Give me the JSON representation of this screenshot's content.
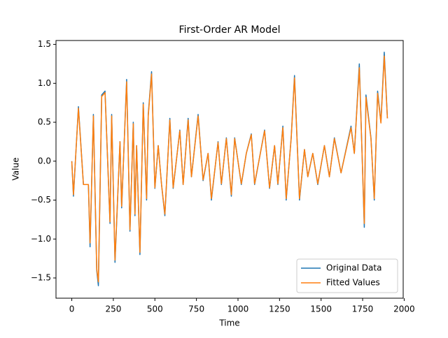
{
  "chart_data": {
    "type": "line",
    "title": "First-Order AR Model",
    "xlabel": "Time",
    "ylabel": "Value",
    "x": [
      0,
      10,
      40,
      70,
      100,
      110,
      130,
      150,
      160,
      180,
      200,
      230,
      240,
      260,
      290,
      300,
      330,
      350,
      370,
      380,
      390,
      410,
      430,
      450,
      460,
      480,
      500,
      520,
      540,
      560,
      590,
      610,
      650,
      670,
      700,
      720,
      760,
      790,
      820,
      840,
      880,
      900,
      930,
      960,
      980,
      1020,
      1050,
      1080,
      1100,
      1160,
      1190,
      1220,
      1240,
      1270,
      1290,
      1320,
      1340,
      1370,
      1400,
      1420,
      1450,
      1480,
      1520,
      1550,
      1580,
      1620,
      1680,
      1700,
      1730,
      1760,
      1770,
      1800,
      1820,
      1840,
      1860,
      1880,
      1899
    ],
    "series": [
      {
        "name": "Original Data",
        "color": "#1f77b4",
        "values": [
          0,
          -0.45,
          0.7,
          -0.3,
          -0.3,
          -1.1,
          0.6,
          -1.4,
          -1.6,
          0.85,
          0.9,
          -0.8,
          0.6,
          -1.3,
          0.25,
          -0.6,
          1.05,
          -0.9,
          0.5,
          -0.7,
          0.2,
          -1.2,
          0.75,
          -0.5,
          0.6,
          1.15,
          -0.35,
          0.2,
          -0.3,
          -0.7,
          0.55,
          -0.35,
          0.4,
          -0.3,
          0.55,
          -0.2,
          0.6,
          -0.25,
          0.1,
          -0.5,
          0.25,
          -0.3,
          0.3,
          -0.45,
          0.3,
          -0.3,
          0.1,
          0.35,
          -0.3,
          0.4,
          -0.35,
          0.2,
          -0.3,
          0.45,
          -0.5,
          0.3,
          1.1,
          -0.5,
          0.15,
          -0.2,
          0.1,
          -0.3,
          0.2,
          -0.2,
          0.3,
          -0.15,
          0.45,
          0.1,
          1.25,
          -0.85,
          0.85,
          0.3,
          -0.5,
          0.9,
          0.5,
          1.4,
          0.55
        ]
      },
      {
        "name": "Fitted Values",
        "color": "#ff7f0e",
        "values": [
          0,
          -0.43,
          0.68,
          -0.3,
          -0.3,
          -1.05,
          0.58,
          -1.38,
          -1.55,
          0.83,
          0.88,
          -0.78,
          0.58,
          -1.27,
          0.25,
          -0.58,
          1.02,
          -0.88,
          0.48,
          -0.68,
          0.2,
          -1.17,
          0.73,
          -0.48,
          0.58,
          1.12,
          -0.34,
          0.2,
          -0.3,
          -0.68,
          0.53,
          -0.34,
          0.39,
          -0.3,
          0.53,
          -0.2,
          0.58,
          -0.24,
          0.1,
          -0.48,
          0.24,
          -0.29,
          0.29,
          -0.43,
          0.29,
          -0.29,
          0.1,
          0.34,
          -0.29,
          0.39,
          -0.34,
          0.2,
          -0.29,
          0.43,
          -0.48,
          0.29,
          1.07,
          -0.48,
          0.15,
          -0.2,
          0.1,
          -0.29,
          0.2,
          -0.2,
          0.29,
          -0.15,
          0.43,
          0.1,
          1.2,
          -0.8,
          0.82,
          0.29,
          -0.48,
          0.87,
          0.49,
          1.35,
          0.55
        ]
      }
    ],
    "xlim": [
      -95,
      1994
    ],
    "ylim": [
      -1.76,
      1.55
    ],
    "xticks": [
      0,
      250,
      500,
      750,
      1000,
      1250,
      1500,
      1750,
      2000
    ],
    "yticks": [
      {
        "value": -1.5,
        "label": "−1.5"
      },
      {
        "value": -1.0,
        "label": "−1.0"
      },
      {
        "value": -0.5,
        "label": "−0.5"
      },
      {
        "value": 0.0,
        "label": "0.0"
      },
      0.5,
      {
        "value": 1.0,
        "label": "1.0"
      },
      1.5
    ],
    "legend": "lower right"
  }
}
